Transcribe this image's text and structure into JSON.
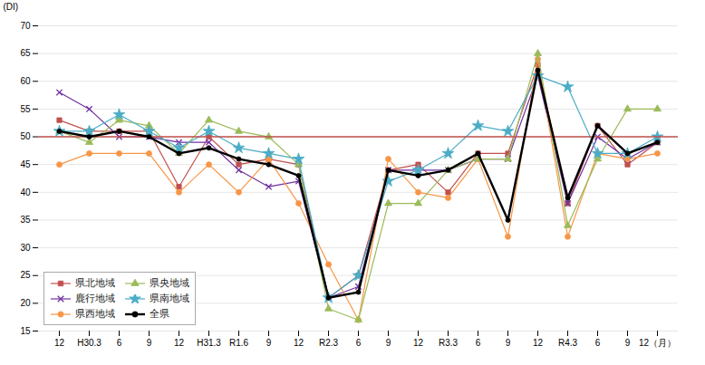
{
  "chart_data": {
    "type": "line",
    "categories": [
      "12",
      "H30.3",
      "6",
      "9",
      "12",
      "H31.3",
      "R1.6",
      "9",
      "12",
      "R2.3",
      "6",
      "9",
      "12",
      "R3.3",
      "6",
      "9",
      "12",
      "R4.3",
      "6",
      "9",
      "12（月）"
    ],
    "series": [
      {
        "name": "県北地域",
        "color": "#c0504d",
        "marker": "square",
        "values": [
          53,
          51,
          51,
          51,
          41,
          50,
          45,
          46,
          45,
          21,
          25,
          44,
          45,
          40,
          47,
          47,
          63,
          38,
          52,
          45,
          49
        ]
      },
      {
        "name": "鹿行地域",
        "color": "#7030a0",
        "marker": "x",
        "values": [
          58,
          55,
          50,
          50,
          49,
          49,
          44,
          41,
          42,
          21,
          23,
          44,
          44,
          44,
          46,
          46,
          61,
          38,
          50,
          46,
          49
        ]
      },
      {
        "name": "県西地域",
        "color": "#f79646",
        "marker": "circle",
        "values": [
          45,
          47,
          47,
          47,
          40,
          45,
          40,
          46,
          38,
          27,
          17,
          46,
          40,
          39,
          46,
          32,
          64,
          32,
          47,
          46,
          47
        ]
      },
      {
        "name": "県央地域",
        "color": "#9bbb59",
        "marker": "triangle",
        "values": [
          51,
          49,
          53,
          52,
          47,
          53,
          51,
          50,
          45,
          19,
          17,
          38,
          38,
          44,
          46,
          46,
          65,
          34,
          46,
          55,
          55
        ]
      },
      {
        "name": "県南地域",
        "color": "#4bacc6",
        "marker": "star",
        "values": [
          51,
          51,
          54,
          51,
          48,
          51,
          48,
          47,
          46,
          21,
          25,
          42,
          44,
          47,
          52,
          51,
          61,
          59,
          47,
          47,
          50
        ]
      },
      {
        "name": "全県",
        "color": "#000000",
        "marker": "circle",
        "values": [
          51,
          50,
          51,
          50,
          47,
          48,
          46,
          45,
          43,
          21,
          22,
          44,
          43,
          44,
          47,
          35,
          62,
          39,
          52,
          47,
          49
        ]
      }
    ],
    "ylim": [
      15,
      70
    ],
    "yticks": [
      15,
      20,
      25,
      30,
      35,
      40,
      45,
      50,
      55,
      60,
      65,
      70
    ],
    "ylabel": "(DI)",
    "grid": true,
    "legend": "lower left",
    "reference_line": {
      "value": 50,
      "color": "#c0504d"
    }
  }
}
